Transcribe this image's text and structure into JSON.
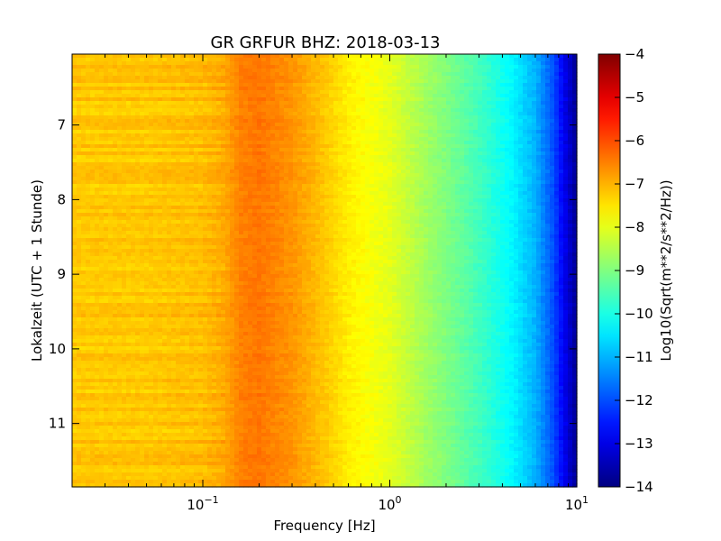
{
  "chart_data": {
    "type": "heatmap",
    "title": "GR GRFUR BHZ: 2018-03-13",
    "xlabel": "Frequency [Hz]",
    "ylabel": "Lokalzeit (UTC + 1 Stunde)",
    "x_scale": "log",
    "xlim": [
      0.02,
      10
    ],
    "ylim": [
      11.85,
      6.05
    ],
    "y_inverted": true,
    "x_ticks": [
      {
        "value": 0.1,
        "base": "10",
        "exp": "−1"
      },
      {
        "value": 1,
        "base": "10",
        "exp": "0"
      },
      {
        "value": 10,
        "base": "10",
        "exp": "1"
      }
    ],
    "y_ticks": [
      {
        "value": 7,
        "label": "7"
      },
      {
        "value": 8,
        "label": "8"
      },
      {
        "value": 9,
        "label": "9"
      },
      {
        "value": 10,
        "label": "10"
      },
      {
        "value": 11,
        "label": "11"
      }
    ],
    "colorbar": {
      "label": "Log10(Sqrt(m**2/s**2/Hz))",
      "range": [
        -14,
        -4
      ],
      "colormap": "jet",
      "ticks": [
        {
          "value": -4,
          "label": "−4"
        },
        {
          "value": -5,
          "label": "−5"
        },
        {
          "value": -6,
          "label": "−6"
        },
        {
          "value": -7,
          "label": "−7"
        },
        {
          "value": -8,
          "label": "−8"
        },
        {
          "value": -9,
          "label": "−9"
        },
        {
          "value": -10,
          "label": "−10"
        },
        {
          "value": -11,
          "label": "−11"
        },
        {
          "value": -12,
          "label": "−12"
        },
        {
          "value": -13,
          "label": "−13"
        },
        {
          "value": -14,
          "label": "−14"
        }
      ]
    },
    "spectrum_profile": {
      "frequency_hz": [
        0.02,
        0.05,
        0.1,
        0.13,
        0.16,
        0.2,
        0.3,
        0.45,
        0.6,
        1.0,
        1.5,
        2.0,
        3.0,
        4.5,
        6.0,
        7.5,
        9.0,
        10.0
      ],
      "level": [
        -7.2,
        -7.2,
        -7.1,
        -6.9,
        -6.5,
        -6.4,
        -6.7,
        -7.2,
        -7.6,
        -8.0,
        -8.6,
        -9.0,
        -9.6,
        -10.3,
        -11.0,
        -12.0,
        -13.2,
        -13.8
      ]
    }
  }
}
